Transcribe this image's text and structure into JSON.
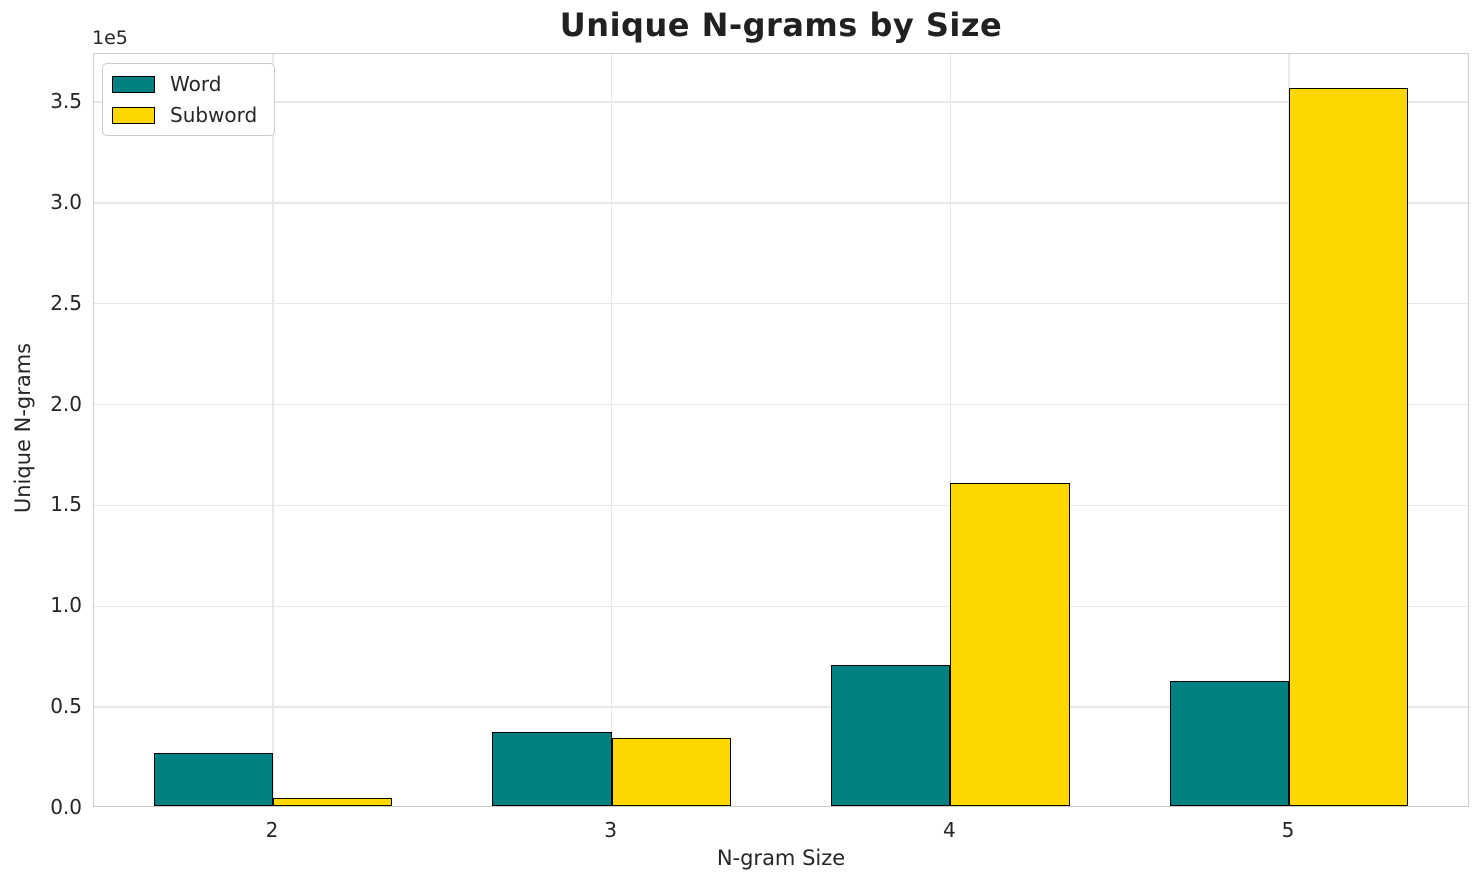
{
  "chart_data": {
    "type": "bar",
    "title": "Unique N-grams by Size",
    "xlabel": "N-gram Size",
    "ylabel": "Unique N-grams",
    "y_axis_offset_label": "1e5",
    "categories": [
      "2",
      "3",
      "4",
      "5"
    ],
    "series": [
      {
        "name": "Word",
        "color": "#008080",
        "edgecolor": "#000000",
        "values": [
          26500,
          36500,
          70000,
          62000
        ]
      },
      {
        "name": "Subword",
        "color": "#FFD700",
        "edgecolor": "#000000",
        "values": [
          4000,
          33500,
          160000,
          356000
        ]
      }
    ],
    "ylim": [
      0,
      373800
    ],
    "yticks": [
      {
        "value": 0,
        "label": "0.0"
      },
      {
        "value": 50000,
        "label": "0.5"
      },
      {
        "value": 100000,
        "label": "1.0"
      },
      {
        "value": 150000,
        "label": "1.5"
      },
      {
        "value": 200000,
        "label": "2.0"
      },
      {
        "value": 250000,
        "label": "2.5"
      },
      {
        "value": 300000,
        "label": "3.0"
      },
      {
        "value": 350000,
        "label": "3.5"
      }
    ],
    "grid": true,
    "legend": {
      "position": "upper left",
      "entries": [
        "Word",
        "Subword"
      ]
    },
    "bar_width_ratio": 0.35
  },
  "colors": {
    "background": "#ffffff",
    "grid": "#e8e8e8",
    "spine": "#cccccc",
    "text": "#262626",
    "bar_edge": "#000000"
  }
}
